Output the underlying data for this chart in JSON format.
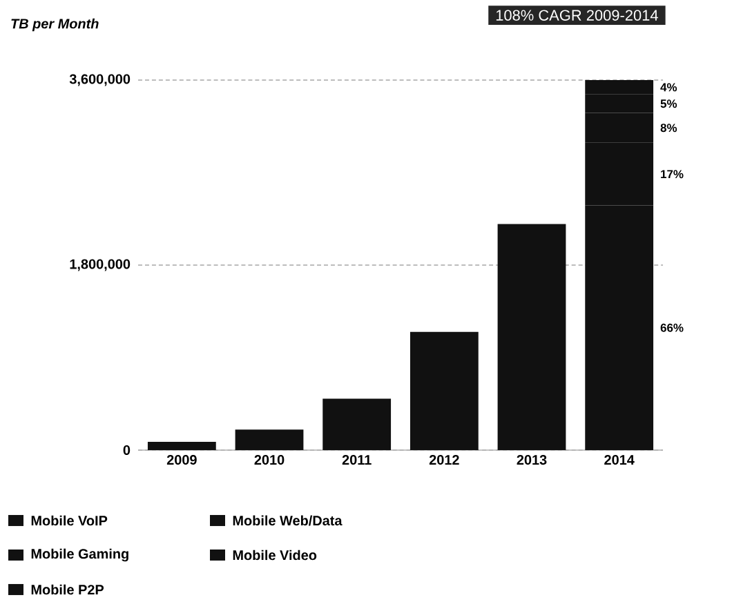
{
  "chart_data": {
    "type": "bar",
    "stacked": true,
    "ylabel": "TB per Month",
    "annotations": [
      "108% CAGR 2009-2014",
      "66%",
      "17%",
      "8%",
      "5%",
      "4%"
    ],
    "categories": [
      "2009",
      "2010",
      "2011",
      "2012",
      "2013",
      "2014"
    ],
    "series": [
      {
        "color": "#111111",
        "values": [
          80000,
          200000,
          500000,
          1150000,
          2200000,
          null
        ]
      },
      {
        "name": "Mobile Video",
        "color": "#111111",
        "values": [
          null,
          null,
          null,
          null,
          null,
          2380000
        ]
      },
      {
        "name": "Mobile Web/Data",
        "color": "#111111",
        "values": [
          null,
          null,
          null,
          null,
          null,
          610000
        ]
      },
      {
        "name": "Mobile P2P",
        "color": "#111111",
        "values": [
          null,
          null,
          null,
          null,
          null,
          290000
        ]
      },
      {
        "name": "Mobile Gaming",
        "color": "#111111",
        "values": [
          null,
          null,
          null,
          null,
          null,
          180000
        ]
      },
      {
        "name": "Mobile VoIP",
        "color": "#111111",
        "values": [
          null,
          null,
          null,
          null,
          null,
          140000
        ]
      }
    ],
    "ylim": [
      0,
      3600000
    ],
    "yticks": [
      0,
      {
        "value": 1800000,
        "label": "1,800,000"
      },
      {
        "value": 3600000,
        "label": "3,600,000"
      }
    ],
    "grid": "y",
    "legend": "bottom"
  }
}
